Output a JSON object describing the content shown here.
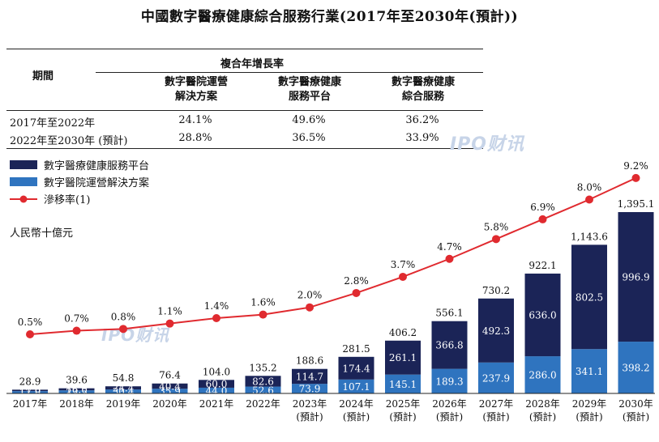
{
  "title": "中國數字醫療健康綜合服務行業(2017年至2030年(預計))",
  "cagr_table": {
    "header_group": "複合年增長率",
    "period_label": "期間",
    "columns": [
      {
        "line1": "數字醫院運營",
        "line2": "解決方案"
      },
      {
        "line1": "數字醫療健康",
        "line2": "服務平台"
      },
      {
        "line1": "數字醫療健康",
        "line2": "綜合服務"
      }
    ],
    "rows": [
      {
        "period": "2017年至2022年",
        "values": [
          "24.1%",
          "49.6%",
          "36.2%"
        ]
      },
      {
        "period": "2022年至2030年 (預計)",
        "values": [
          "28.8%",
          "36.5%",
          "33.9%"
        ]
      }
    ]
  },
  "watermark": "IPO财讯",
  "legend": {
    "platform": "數字醫療健康服務平台",
    "hospital": "數字醫院運營解決方案",
    "penetration": "滲移率(1)"
  },
  "unit_label": "人民幣十億元",
  "colors": {
    "platform": "#1b2457",
    "hospital": "#2f74bf",
    "penetration": "#e02a2f"
  },
  "chart_data": {
    "type": "bar",
    "stacked": true,
    "categories": [
      "2017年",
      "2018年",
      "2019年",
      "2020年",
      "2021年",
      "2022年",
      "2023年",
      "2024年",
      "2025年",
      "2026年",
      "2027年",
      "2028年",
      "2029年",
      "2030年"
    ],
    "category_sub": [
      "",
      "",
      "",
      "",
      "",
      "",
      "(預計)",
      "(預計)",
      "(預計)",
      "(預計)",
      "(預計)",
      "(預計)",
      "(預計)",
      "(預計)"
    ],
    "series": [
      {
        "name": "數字醫院運營解決方案",
        "values": [
          17.8,
          23.5,
          30.4,
          35.9,
          44.0,
          52.6,
          73.9,
          107.1,
          145.1,
          189.3,
          237.9,
          286.0,
          341.1,
          398.2
        ]
      },
      {
        "name": "數字醫療健康服務平台",
        "values": [
          11.0,
          16.0,
          24.4,
          40.4,
          60.0,
          82.6,
          114.7,
          174.4,
          261.1,
          366.8,
          492.3,
          636.0,
          802.5,
          996.9
        ]
      }
    ],
    "totals": [
      "28.9",
      "39.6",
      "54.8",
      "76.4",
      "104.0",
      "135.2",
      "188.6",
      "281.5",
      "406.2",
      "556.1",
      "730.2",
      "922.1",
      "1,143.6",
      "1,395.1"
    ],
    "line": {
      "name": "滲移率(1)",
      "values": [
        0.5,
        0.7,
        0.8,
        1.1,
        1.4,
        1.6,
        2.0,
        2.8,
        3.7,
        4.7,
        5.8,
        6.9,
        8.0,
        9.2
      ],
      "labels": [
        "0.5%",
        "0.7%",
        "0.8%",
        "1.1%",
        "1.4%",
        "1.6%",
        "2.0%",
        "2.8%",
        "3.7%",
        "4.7%",
        "5.8%",
        "6.9%",
        "8.0%",
        "9.2%"
      ]
    },
    "ylabel": "人民幣十億元",
    "ylim": [
      0,
      1500
    ]
  }
}
